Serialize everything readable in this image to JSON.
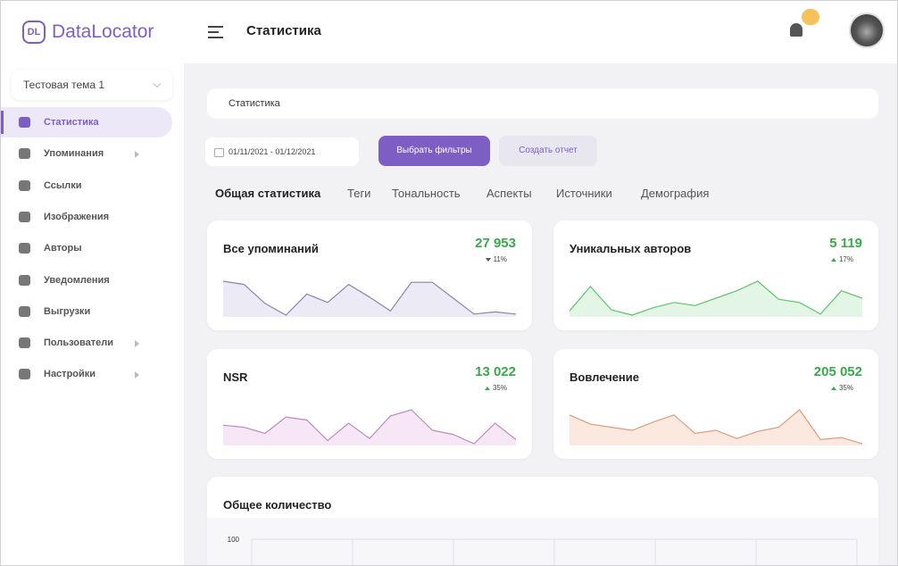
{
  "sidebar": {
    "logo_badge": "DL",
    "logo": "DataLocator",
    "topic": "Тестовая тема 1",
    "menu": [
      {
        "label": "Статистика",
        "active": true
      },
      {
        "label": "Упоминания",
        "submenu": true
      },
      {
        "label": "Ссылки"
      },
      {
        "label": "Изображения"
      },
      {
        "label": "Авторы"
      },
      {
        "label": "Уведомления"
      },
      {
        "label": "Выгрузки"
      },
      {
        "label": "Пользователи",
        "submenu": true
      },
      {
        "label": "Настройки",
        "submenu": true
      }
    ]
  },
  "header": {
    "title": "Статистика"
  },
  "breadcrumb": "Статистика",
  "date_range": "01/11/2021 - 01/12/2021",
  "buttons": {
    "filters": "Выбрать фильтры",
    "report": "Создать отчет"
  },
  "tabs": [
    "Общая статистика",
    "Теги",
    "Тональность",
    "Аспекты",
    "Источники",
    "Демография"
  ],
  "cards": [
    {
      "title": "Все упоминаний",
      "value": "27 953",
      "change": "11%",
      "trend": "down",
      "color": "#8b82b0",
      "fill": "#eceaf4",
      "values": [
        43,
        40,
        22,
        11,
        31,
        23,
        40,
        28,
        15,
        42,
        42,
        27,
        12,
        14,
        12
      ]
    },
    {
      "title": "Уникальных авторов",
      "value": "5 119",
      "change": "17%",
      "trend": "up",
      "color": "#5cc46a",
      "fill": "#e3f5e4",
      "values": [
        15,
        38,
        16,
        11,
        18,
        23,
        20,
        27,
        34,
        43,
        26,
        23,
        12,
        34,
        27
      ]
    },
    {
      "title": "NSR",
      "value": "13 022",
      "change": "35%",
      "trend": "up",
      "color": "#b98bc0",
      "fill": "#f6e6f6",
      "values": [
        35,
        33,
        27,
        43,
        40,
        20,
        37,
        22,
        44,
        50,
        30,
        26,
        17,
        37,
        21
      ]
    },
    {
      "title": "Вовлечение",
      "value": "205 052",
      "change": "35%",
      "trend": "up",
      "color": "#e09b7d",
      "fill": "#fbe8df",
      "values": [
        45,
        36,
        33,
        30,
        38,
        45,
        27,
        30,
        22,
        29,
        33,
        50,
        21,
        23,
        17
      ]
    }
  ],
  "total_chart": {
    "title": "Общее количество",
    "yticks": [
      100
    ]
  }
}
